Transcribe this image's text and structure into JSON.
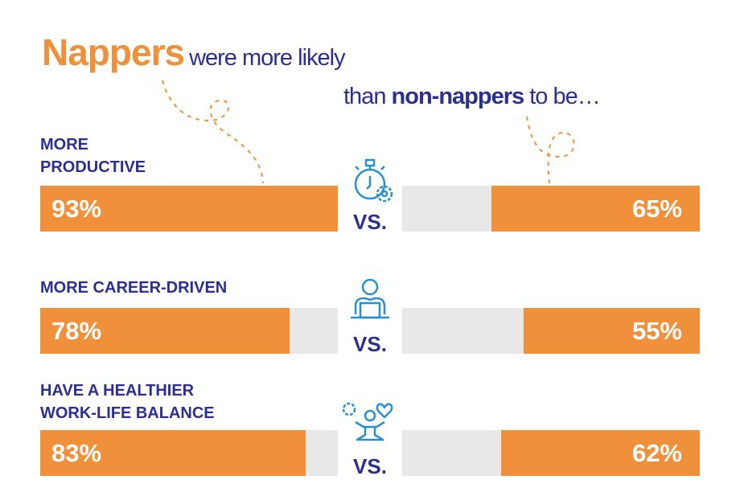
{
  "title": {
    "highlight": "Nappers",
    "rest": "were more likely",
    "line2_pre": "than",
    "line2_bold": "non-nappers",
    "line2_post": "to be…"
  },
  "colors": {
    "orange": "#f0903a",
    "track": "#e8e8e8",
    "navy": "#2b2f8f",
    "icon": "#2a8fd0"
  },
  "chart_data": {
    "type": "bar",
    "categories": [
      "MORE\nPRODUCTIVE",
      "MORE CAREER-DRIVEN",
      "HAVE A HEALTHIER\nWORK-LIFE BALANCE"
    ],
    "series": [
      {
        "name": "Nappers",
        "values": [
          93,
          78,
          83
        ]
      },
      {
        "name": "non-nappers",
        "values": [
          65,
          55,
          62
        ]
      }
    ],
    "labels_left": [
      "93%",
      "78%",
      "83%"
    ],
    "labels_right": [
      "65%",
      "55%",
      "62%"
    ],
    "separator": "VS.",
    "icons": [
      "stopwatch-gear-icon",
      "person-laptop-icon",
      "meditation-gear-heart-icon"
    ]
  }
}
